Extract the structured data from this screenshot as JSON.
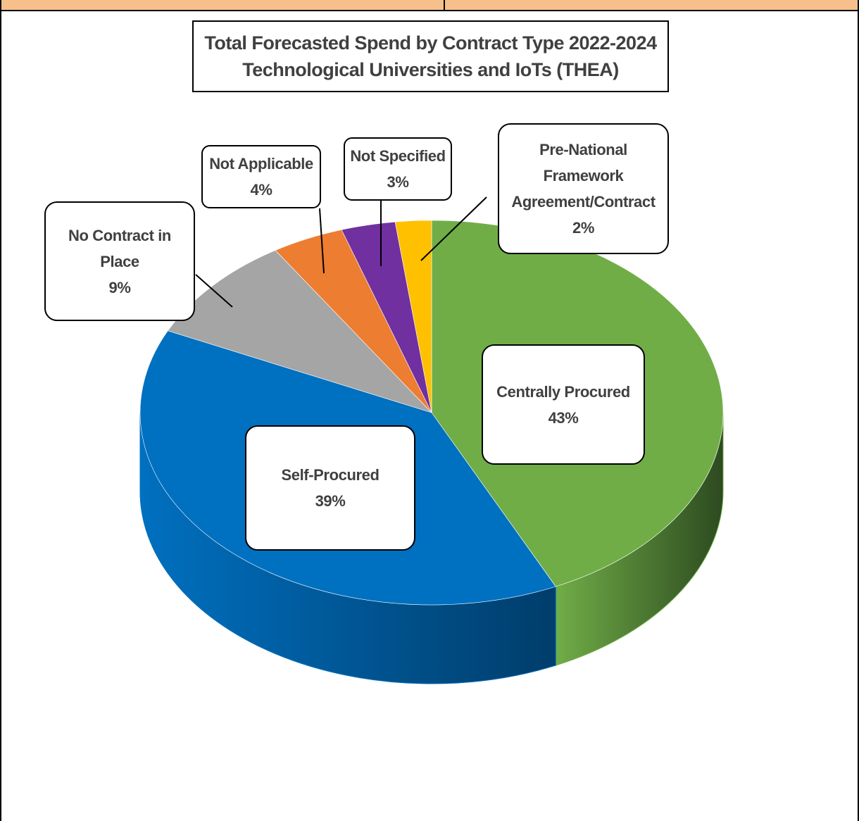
{
  "chart_data": {
    "type": "pie",
    "title_line1": "Total Forecasted Spend by Contract Type 2022-2024",
    "title_line2": "Technological Universities and IoTs (THEA)",
    "slices": [
      {
        "name": "Centrally Procured",
        "value": 43,
        "label": "43%",
        "color": "#70ad47",
        "side_color": "#2d4a20"
      },
      {
        "name": "Self-Procured",
        "value": 39,
        "label": "39%",
        "color": "#0070c0",
        "side_color": "#003d6b"
      },
      {
        "name": "No Contract in Place",
        "value": 9,
        "label": "9%",
        "color": "#a5a5a5",
        "side_color": "#5a5a5a"
      },
      {
        "name": "Not Applicable",
        "value": 4,
        "label": "4%",
        "color": "#ed7d31",
        "side_color": "#8a4418"
      },
      {
        "name": "Not Specified",
        "value": 3,
        "label": "3%",
        "color": "#7030a0",
        "side_color": "#3d1858"
      },
      {
        "name": "Pre-National Framework Agreement/Contract",
        "value": 2,
        "label": "2%",
        "color": "#ffc000",
        "side_color": "#8a6800"
      }
    ]
  },
  "labels": {
    "centrally_name": "Centrally Procured",
    "centrally_pct": "43%",
    "self_name": "Self-Procured",
    "self_pct": "39%",
    "nocontract_name_1": "No Contract in",
    "nocontract_name_2": "Place",
    "nocontract_pct": "9%",
    "notapplicable_name": "Not Applicable",
    "notapplicable_pct": "4%",
    "notspecified_name": "Not Specified",
    "notspecified_pct": "3%",
    "prenational_name_1": "Pre-National",
    "prenational_name_2": "Framework",
    "prenational_name_3": "Agreement/Contract",
    "prenational_pct": "2%"
  }
}
